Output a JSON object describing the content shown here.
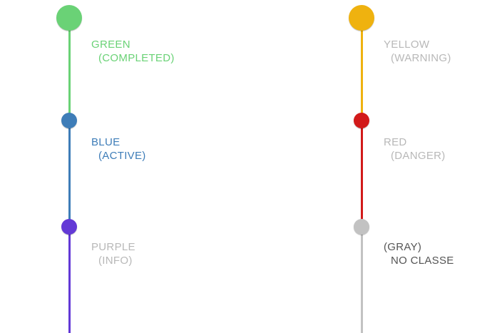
{
  "colors": {
    "green": "#6ad276",
    "blue": "#3e7db8",
    "purple": "#6339d6",
    "yellow": "#efb20f",
    "red": "#d21a1a",
    "gray": "#c2c2c2",
    "inactive_text": "#b8b8b8",
    "dark_text": "#555555"
  },
  "left_track": {
    "steps": [
      {
        "title": "GREEN",
        "subtitle": "(COMPLETED)"
      },
      {
        "title": "BLUE",
        "subtitle": "(ACTIVE)"
      },
      {
        "title": "PURPLE",
        "subtitle": "(INFO)"
      }
    ]
  },
  "right_track": {
    "steps": [
      {
        "title": "YELLOW",
        "subtitle": "(WARNING)"
      },
      {
        "title": "RED",
        "subtitle": "(DANGER)"
      },
      {
        "title": "(GRAY)",
        "subtitle": "NO CLASSE"
      }
    ]
  }
}
